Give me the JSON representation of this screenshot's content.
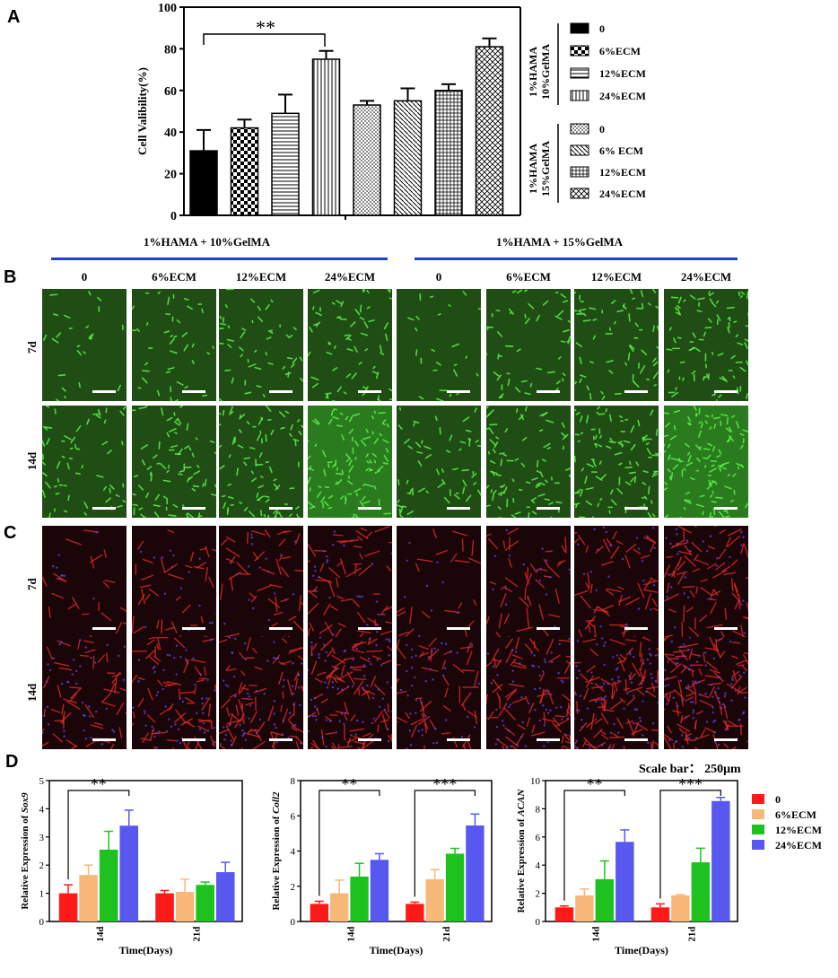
{
  "panels": {
    "a": "A",
    "b": "B",
    "c": "C",
    "d": "D"
  },
  "chart_data": [
    {
      "type": "bar",
      "panel": "A",
      "ylabel": "Cell Valibility(%)",
      "ylim": [
        0,
        100
      ],
      "yticks": [
        "0",
        "20",
        "40",
        "60",
        "80",
        "100"
      ],
      "categories": [
        "0",
        "6%ECM",
        "12%ECM",
        "24%ECM",
        "0",
        "6% ECM",
        "12%ECM",
        "24%ECM"
      ],
      "values": [
        31,
        42,
        49,
        75,
        53,
        55,
        60,
        81
      ],
      "errors": [
        10,
        4,
        9,
        4,
        2,
        6,
        3,
        4
      ],
      "groups": [
        {
          "name": "1%HAMA 10%GelMA",
          "legend": [
            "0",
            "6%ECM",
            "12%ECM",
            "24%ECM"
          ]
        },
        {
          "name": "1%HAMA 15%GelMA",
          "legend": [
            "0",
            "6% ECM",
            "12%ECM",
            "24%ECM"
          ]
        }
      ],
      "significance": "**",
      "legend_position": "right"
    },
    {
      "type": "bar",
      "panel": "D1",
      "ylabel_prefix": "Relative Expression of ",
      "ylabel_gene": "Sox9",
      "xlabel": "Time(Days)",
      "ylim": [
        0,
        5
      ],
      "yticks": [
        "0",
        "1",
        "2",
        "3",
        "4",
        "5"
      ],
      "categories": [
        "14d",
        "21d"
      ],
      "series": [
        {
          "name": "0",
          "values": [
            1.0,
            1.0
          ],
          "errors": [
            0.3,
            0.1
          ],
          "color": "#ff1a1a"
        },
        {
          "name": "6%ECM",
          "values": [
            1.65,
            1.05
          ],
          "errors": [
            0.35,
            0.45
          ],
          "color": "#f7b87a"
        },
        {
          "name": "12%ECM",
          "values": [
            2.55,
            1.3
          ],
          "errors": [
            0.65,
            0.1
          ],
          "color": "#1ec21e"
        },
        {
          "name": "24%ECM",
          "values": [
            3.4,
            1.75
          ],
          "errors": [
            0.55,
            0.35
          ],
          "color": "#5858f0"
        }
      ],
      "significance": [
        "**"
      ]
    },
    {
      "type": "bar",
      "panel": "D2",
      "ylabel_prefix": "Relative Expression of ",
      "ylabel_gene": "Coll2",
      "xlabel": "Time(Days)",
      "ylim": [
        0,
        8
      ],
      "yticks": [
        "0",
        "2",
        "4",
        "6",
        "8"
      ],
      "categories": [
        "14d",
        "21d"
      ],
      "series": [
        {
          "name": "0",
          "values": [
            1.0,
            1.0
          ],
          "errors": [
            0.15,
            0.1
          ],
          "color": "#ff1a1a"
        },
        {
          "name": "6%ECM",
          "values": [
            1.6,
            2.4
          ],
          "errors": [
            0.75,
            0.55
          ],
          "color": "#f7b87a"
        },
        {
          "name": "12%ECM",
          "values": [
            2.55,
            3.85
          ],
          "errors": [
            0.75,
            0.3
          ],
          "color": "#1ec21e"
        },
        {
          "name": "24%ECM",
          "values": [
            3.5,
            5.45
          ],
          "errors": [
            0.35,
            0.65
          ],
          "color": "#5858f0"
        }
      ],
      "significance": [
        "**",
        "***"
      ]
    },
    {
      "type": "bar",
      "panel": "D3",
      "ylabel_prefix": "Relative Expression of ",
      "ylabel_gene": "ACAN",
      "xlabel": "Time(Days)",
      "ylim": [
        0,
        10
      ],
      "yticks": [
        "0",
        "2",
        "4",
        "6",
        "8",
        "10"
      ],
      "categories": [
        "14d",
        "21d"
      ],
      "series": [
        {
          "name": "0",
          "values": [
            1.0,
            1.0
          ],
          "errors": [
            0.1,
            0.25
          ],
          "color": "#ff1a1a"
        },
        {
          "name": "6%ECM",
          "values": [
            1.85,
            1.85
          ],
          "errors": [
            0.45,
            0.05
          ],
          "color": "#f7b87a"
        },
        {
          "name": "12%ECM",
          "values": [
            3.0,
            4.2
          ],
          "errors": [
            1.3,
            1.0
          ],
          "color": "#1ec21e"
        },
        {
          "name": "24%ECM",
          "values": [
            5.65,
            8.55
          ],
          "errors": [
            0.85,
            0.25
          ],
          "color": "#5858f0"
        }
      ],
      "significance": [
        "**",
        "***"
      ]
    }
  ],
  "imaging": {
    "group_titles": [
      "1%HAMA + 10%GelMA",
      "1%HAMA + 15%GelMA"
    ],
    "columns": [
      "0",
      "6%ECM",
      "12%ECM",
      "24%ECM",
      "0",
      "6%ECM",
      "12%ECM",
      "24%ECM"
    ],
    "rows": [
      "7d",
      "14d"
    ],
    "scale_label": "Scale bar： 250μm"
  },
  "legend_d": {
    "entries": [
      {
        "name": "0",
        "color": "#ff1a1a"
      },
      {
        "name": "6%ECM",
        "color": "#f7b87a"
      },
      {
        "name": "12%ECM",
        "color": "#1ec21e"
      },
      {
        "name": "24%ECM",
        "color": "#5858f0"
      }
    ]
  }
}
